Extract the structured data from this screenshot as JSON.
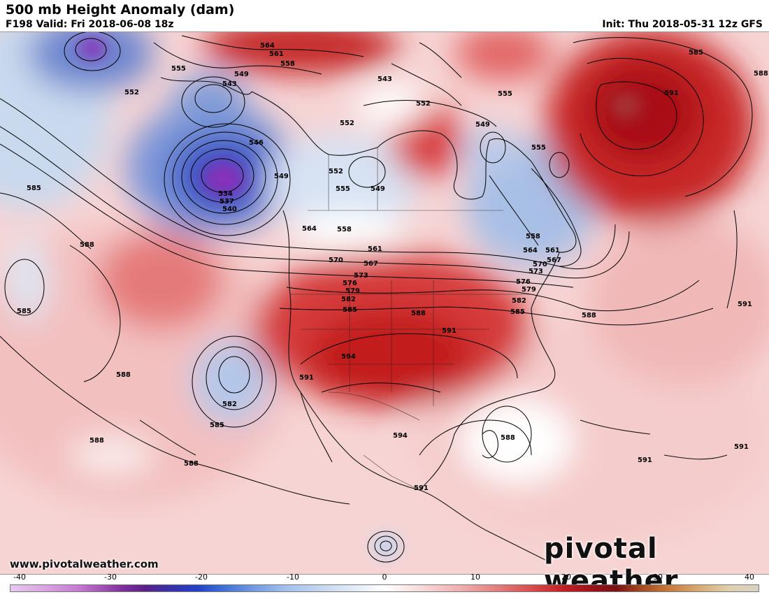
{
  "header": {
    "title": "500 mb Height Anomaly (dam)",
    "valid": "F198 Valid: Fri 2018-06-08 18z",
    "init": "Init: Thu 2018-05-31 12z GFS"
  },
  "footer": {
    "site": "www.pivotalweather.com",
    "brand": "pivotal weather"
  },
  "colorbar": {
    "ticks": [
      "-40",
      "-30",
      "-20",
      "-10",
      "0",
      "10",
      "20",
      "30",
      "40"
    ]
  },
  "contour_labels": [
    "534",
    "537",
    "540",
    "543",
    "546",
    "549",
    "552",
    "555",
    "558",
    "561",
    "564",
    "567",
    "570",
    "573",
    "576",
    "579",
    "582",
    "585",
    "588",
    "591",
    "594"
  ]
}
